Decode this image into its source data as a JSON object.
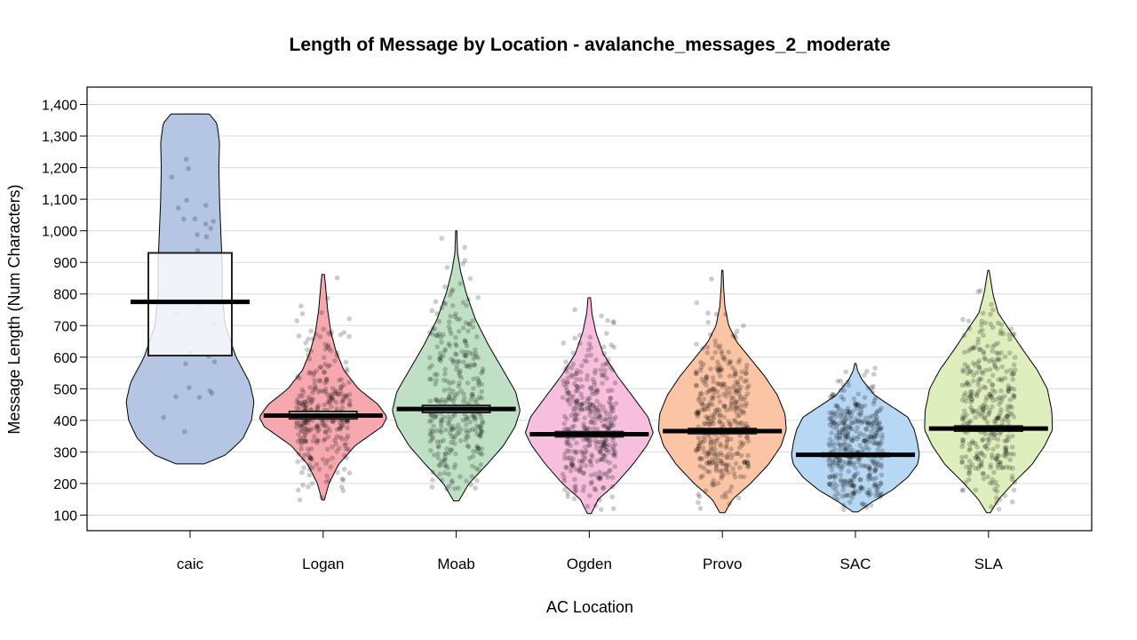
{
  "chart_data": {
    "type": "pirate",
    "title": "Length of Message by Location - avalanche_messages_2_moderate",
    "xlabel": "AC Location",
    "ylabel": "Message Length (Num Characters)",
    "ylim": [
      50,
      1450
    ],
    "yticks": [
      100,
      200,
      300,
      400,
      500,
      600,
      700,
      800,
      900,
      1000,
      1100,
      1200,
      1300,
      1400
    ],
    "ytick_labels": [
      "100",
      "200",
      "300",
      "400",
      "500",
      "600",
      "700",
      "800",
      "900",
      "1,000",
      "1,100",
      "1,200",
      "1,300",
      "1,400"
    ],
    "grid": true,
    "categories": [
      "caic",
      "Logan",
      "Moab",
      "Ogden",
      "Provo",
      "SAC",
      "SLA"
    ],
    "series": [
      {
        "category": "caic",
        "min": 262,
        "max": 1370,
        "mean": 775,
        "ci_low": 605,
        "ci_high": 930,
        "color": "#b4c6e3",
        "n_points": 28,
        "density": [
          [
            262,
            0.22
          ],
          [
            290,
            0.55
          ],
          [
            340,
            0.82
          ],
          [
            400,
            0.96
          ],
          [
            460,
            1.0
          ],
          [
            520,
            0.93
          ],
          [
            600,
            0.72
          ],
          [
            700,
            0.55
          ],
          [
            800,
            0.5
          ],
          [
            900,
            0.5
          ],
          [
            1000,
            0.48
          ],
          [
            1100,
            0.46
          ],
          [
            1200,
            0.45
          ],
          [
            1280,
            0.46
          ],
          [
            1340,
            0.42
          ],
          [
            1370,
            0.3
          ]
        ]
      },
      {
        "category": "Logan",
        "min": 148,
        "max": 862,
        "mean": 415,
        "ci_low": 405,
        "ci_high": 428,
        "color": "#f7a8ae",
        "n_points": 320,
        "density": [
          [
            148,
            0.02
          ],
          [
            200,
            0.09
          ],
          [
            260,
            0.24
          ],
          [
            320,
            0.5
          ],
          [
            380,
            0.92
          ],
          [
            410,
            1.0
          ],
          [
            450,
            0.86
          ],
          [
            500,
            0.55
          ],
          [
            560,
            0.32
          ],
          [
            620,
            0.2
          ],
          [
            680,
            0.12
          ],
          [
            750,
            0.07
          ],
          [
            820,
            0.04
          ],
          [
            862,
            0.02
          ]
        ]
      },
      {
        "category": "Moab",
        "min": 145,
        "max": 1000,
        "mean": 436,
        "ci_low": 425,
        "ci_high": 447,
        "color": "#bfe0c4",
        "n_points": 330,
        "density": [
          [
            145,
            0.04
          ],
          [
            200,
            0.2
          ],
          [
            260,
            0.48
          ],
          [
            320,
            0.74
          ],
          [
            380,
            0.92
          ],
          [
            430,
            1.0
          ],
          [
            490,
            0.93
          ],
          [
            560,
            0.73
          ],
          [
            640,
            0.5
          ],
          [
            720,
            0.3
          ],
          [
            800,
            0.16
          ],
          [
            870,
            0.07
          ],
          [
            930,
            0.02
          ],
          [
            1000,
            0.01
          ]
        ]
      },
      {
        "category": "Ogden",
        "min": 105,
        "max": 788,
        "mean": 356,
        "ci_low": 348,
        "ci_high": 364,
        "color": "#f7bfdd",
        "n_points": 360,
        "density": [
          [
            105,
            0.03
          ],
          [
            150,
            0.14
          ],
          [
            200,
            0.42
          ],
          [
            260,
            0.68
          ],
          [
            320,
            0.9
          ],
          [
            360,
            1.0
          ],
          [
            410,
            0.92
          ],
          [
            470,
            0.7
          ],
          [
            540,
            0.44
          ],
          [
            610,
            0.22
          ],
          [
            680,
            0.1
          ],
          [
            740,
            0.04
          ],
          [
            788,
            0.02
          ]
        ]
      },
      {
        "category": "Provo",
        "min": 108,
        "max": 875,
        "mean": 366,
        "ci_low": 358,
        "ci_high": 374,
        "color": "#fbc4a4",
        "n_points": 360,
        "density": [
          [
            108,
            0.04
          ],
          [
            150,
            0.16
          ],
          [
            200,
            0.44
          ],
          [
            260,
            0.72
          ],
          [
            320,
            0.92
          ],
          [
            370,
            1.0
          ],
          [
            420,
            0.98
          ],
          [
            480,
            0.86
          ],
          [
            540,
            0.66
          ],
          [
            600,
            0.42
          ],
          [
            650,
            0.22
          ],
          [
            700,
            0.1
          ],
          [
            760,
            0.04
          ],
          [
            820,
            0.02
          ],
          [
            875,
            0.01
          ]
        ]
      },
      {
        "category": "SAC",
        "min": 110,
        "max": 580,
        "mean": 291,
        "ci_low": 286,
        "ci_high": 296,
        "color": "#b6d8f4",
        "n_points": 380,
        "density": [
          [
            110,
            0.04
          ],
          [
            140,
            0.25
          ],
          [
            180,
            0.58
          ],
          [
            220,
            0.82
          ],
          [
            260,
            0.97
          ],
          [
            290,
            1.0
          ],
          [
            330,
            0.97
          ],
          [
            370,
            0.92
          ],
          [
            410,
            0.82
          ],
          [
            450,
            0.52
          ],
          [
            480,
            0.3
          ],
          [
            500,
            0.22
          ],
          [
            530,
            0.1
          ],
          [
            560,
            0.03
          ],
          [
            580,
            0.01
          ]
        ]
      },
      {
        "category": "SLA",
        "min": 108,
        "max": 875,
        "mean": 374,
        "ci_low": 366,
        "ci_high": 382,
        "color": "#deeebd",
        "n_points": 360,
        "density": [
          [
            108,
            0.03
          ],
          [
            150,
            0.16
          ],
          [
            200,
            0.38
          ],
          [
            260,
            0.68
          ],
          [
            320,
            0.88
          ],
          [
            370,
            1.0
          ],
          [
            430,
            0.99
          ],
          [
            500,
            0.92
          ],
          [
            560,
            0.76
          ],
          [
            620,
            0.55
          ],
          [
            680,
            0.35
          ],
          [
            740,
            0.15
          ],
          [
            800,
            0.07
          ],
          [
            850,
            0.03
          ],
          [
            875,
            0.01
          ]
        ]
      }
    ]
  }
}
